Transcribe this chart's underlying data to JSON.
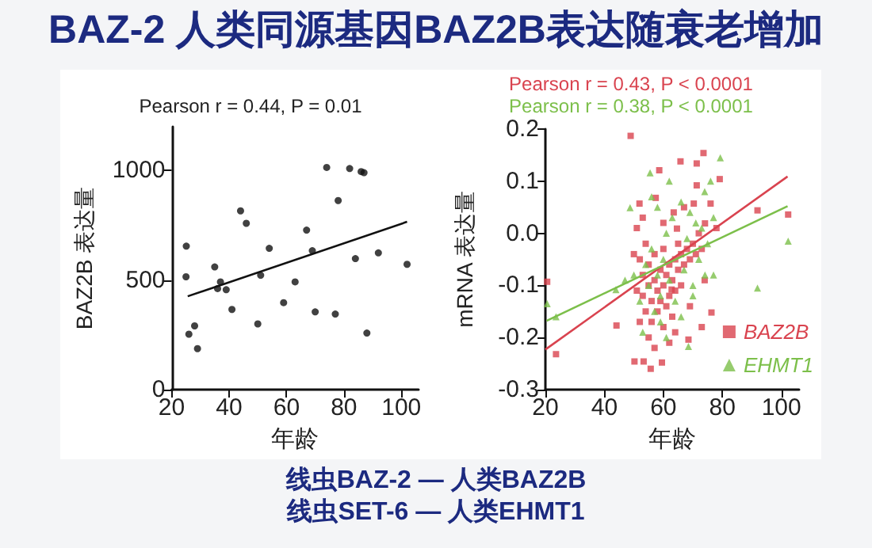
{
  "chart_data": [
    {
      "type": "scatter",
      "title": "BAZ-2 人类同源基因BAZ2B表达随衰老增加",
      "xlabel": "年龄",
      "ylabel": "BAZ2B 表达量",
      "annotations": [
        "Pearson r = 0.44, P = 0.01"
      ],
      "xlim": [
        20,
        106
      ],
      "xticks": [
        20,
        40,
        60,
        80,
        100
      ],
      "ylim": [
        0,
        1200
      ],
      "yticks": [
        0,
        500,
        1000
      ],
      "grid": false,
      "legend": false,
      "marker": "circle",
      "series": [
        {
          "color": "#111111",
          "x": [
            25.1,
            25,
            26,
            28,
            29,
            35,
            36,
            37,
            39,
            41,
            44,
            46,
            50,
            51,
            54,
            59,
            63,
            67,
            69,
            70,
            74,
            77,
            78,
            82,
            84,
            86,
            87,
            88,
            92,
            102
          ],
          "values": [
            655,
            515,
            253,
            291,
            187,
            560,
            461,
            492,
            456,
            366,
            816,
            759,
            300,
            522,
            645,
            397,
            492,
            728,
            634,
            355,
            1014,
            345,
            863,
            1009,
            598,
            995,
            990,
            258,
            624,
            572
          ]
        },
        {
          "type": "line",
          "color": "#111111",
          "marker": "none",
          "x": [
            25.6,
            102
          ],
          "values": [
            426,
            766
          ]
        }
      ]
    },
    {
      "type": "scatter",
      "xlabel": "年龄",
      "ylabel": "mRNA 表达量",
      "annotations": [
        "Pearson r = 0.43, P < 0.0001",
        "Pearson r = 0.38, P < 0.0001",
        "线虫BAZ-2 — 人类BAZ2B",
        "线虫SET-6 — 人类EHMT1"
      ],
      "xlim": [
        20,
        106
      ],
      "xticks": [
        20,
        40,
        60,
        80,
        100
      ],
      "ylim": [
        -0.3,
        0.2
      ],
      "yticks": [
        -0.3,
        -0.2,
        -0.1,
        {
          "value": 0,
          "label": "0.0"
        },
        0.1,
        0.2
      ],
      "grid": false,
      "legend": "bottom right",
      "series": [
        {
          "name": "BAZ2B",
          "color": "#d9434f",
          "marker": "square",
          "x": [
            48.9,
            20.6,
            23.6,
            44.1,
            73.6,
            71.3,
            65.8,
            79.1,
            91.9,
            102.3,
            76.3,
            68.5,
            50.2,
            53.3,
            55.7,
            59.5,
            58.6,
            57.4,
            51.9,
            63.5,
            64.6,
            71.3,
            74.1,
            76,
            70.3,
            62.8,
            52,
            53,
            53,
            54,
            54,
            55,
            55,
            56,
            56,
            57,
            57,
            58,
            58,
            59,
            59,
            60,
            60,
            60,
            61,
            61,
            62,
            62,
            63,
            63,
            64,
            64,
            65,
            65,
            66,
            66,
            67,
            68,
            69,
            70,
            71,
            72,
            73,
            74,
            55,
            57,
            62,
            64,
            52,
            51,
            50,
            51,
            53,
            60,
            67,
            69,
            78,
            73
          ],
          "values": [
            0.187,
            -0.093,
            -0.232,
            -0.177,
            0.154,
            0.134,
            0.138,
            0.104,
            0.044,
            0.036,
            -0.152,
            -0.204,
            -0.246,
            -0.246,
            -0.26,
            -0.248,
            0.121,
            0.068,
            0.057,
            0.04,
            0.009,
            0.092,
            0.019,
            0.057,
            0.057,
            -0.108,
            -0.05,
            -0.08,
            -0.12,
            -0.02,
            -0.15,
            -0.1,
            -0.06,
            -0.13,
            -0.17,
            -0.09,
            -0.04,
            -0.11,
            -0.15,
            -0.07,
            -0.13,
            -0.1,
            -0.18,
            -0.03,
            -0.08,
            -0.14,
            -0.06,
            -0.12,
            -0.09,
            -0.16,
            -0.05,
            -0.11,
            -0.07,
            -0.02,
            -0.1,
            -0.04,
            -0.06,
            -0.03,
            -0.05,
            -0.02,
            -0.04,
            0.0,
            -0.03,
            -0.09,
            -0.2,
            -0.22,
            -0.21,
            -0.19,
            -0.17,
            -0.11,
            -0.04,
            0.01,
            0.03,
            0.02,
            0.05,
            -0.14,
            0.01,
            -0.18
          ]
        },
        {
          "name": "EHMT1",
          "color": "#7cbf4a",
          "marker": "triangle",
          "x": [
            20.6,
            23.6,
            48.7,
            55.5,
            79.3,
            91.9,
            102.3,
            74.1,
            77,
            43.9,
            68.5,
            50,
            52,
            53,
            54,
            55,
            56,
            57,
            58,
            58,
            59,
            60,
            61,
            61,
            62,
            63,
            64,
            65,
            66,
            67,
            68,
            69,
            70,
            71,
            72,
            73,
            74,
            75,
            76,
            77,
            62,
            56,
            59,
            66,
            70,
            47
          ],
          "values": [
            -0.135,
            -0.16,
            0.049,
            0.116,
            0.145,
            -0.105,
            -0.015,
            -0.08,
            -0.08,
            -0.108,
            -0.217,
            -0.08,
            -0.13,
            -0.19,
            -0.06,
            -0.1,
            -0.03,
            -0.15,
            -0.08,
            0.05,
            -0.12,
            -0.05,
            -0.2,
            0.0,
            -0.09,
            0.03,
            -0.13,
            null,
            0.06,
            -0.07,
            -0.01,
            0.04,
            -0.1,
            0.02,
            -0.05,
            0.01,
            0.08,
            -0.02,
            0.1,
            0.03,
            0.1,
            0.07,
            -0.17,
            -0.16,
            -0.12,
            -0.09
          ]
        },
        {
          "type": "line",
          "color": "#d9434f",
          "marker": "none",
          "x": [
            20,
            102.1
          ],
          "values": [
            -0.223,
            0.109
          ]
        },
        {
          "type": "line",
          "color": "#7cbf4a",
          "marker": "none",
          "x": [
            20.4,
            102.1
          ],
          "values": [
            -0.168,
            0.052
          ]
        }
      ]
    }
  ]
}
